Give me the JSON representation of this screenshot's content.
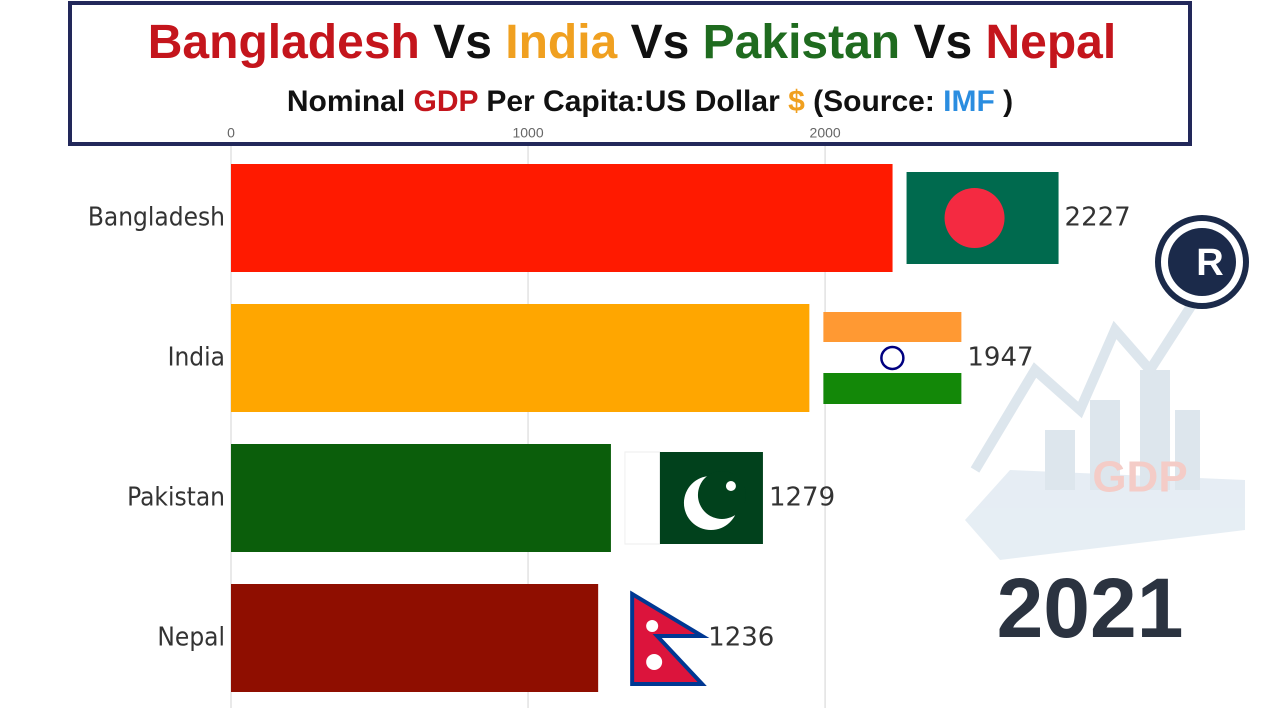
{
  "chart_data": {
    "type": "bar",
    "orientation": "horizontal",
    "title_parts": [
      {
        "text": "Bangladesh",
        "color": "#c4151c"
      },
      {
        "text": "Vs",
        "color": "#111111"
      },
      {
        "text": "India",
        "color": "#f0a020"
      },
      {
        "text": "Vs",
        "color": "#111111"
      },
      {
        "text": "Pakistan",
        "color": "#1f6b1f"
      },
      {
        "text": "Vs",
        "color": "#111111"
      },
      {
        "text": "Nepal",
        "color": "#c4151c"
      }
    ],
    "subtitle_parts": [
      {
        "text": "Nominal",
        "color": "#111111"
      },
      {
        "text": "GDP",
        "color": "#c4151c"
      },
      {
        "text": "Per Capita:US Dollar",
        "color": "#111111"
      },
      {
        "text": "$",
        "color": "#f0a020"
      },
      {
        "text": "(Source:",
        "color": "#111111"
      },
      {
        "text": "IMF",
        "color": "#2a8de0"
      },
      {
        "text": ")",
        "color": "#111111"
      }
    ],
    "period": "2021",
    "categories": [
      "Bangladesh",
      "India",
      "Pakistan",
      "Nepal"
    ],
    "values": [
      2227,
      1947,
      1279,
      1236
    ],
    "colors": [
      "#ff1a00",
      "#ffa600",
      "#0b5e0b",
      "#8f0e00"
    ],
    "xlim": [
      0,
      3400
    ],
    "xticks": [
      0,
      1000,
      2000
    ],
    "grid": true
  }
}
